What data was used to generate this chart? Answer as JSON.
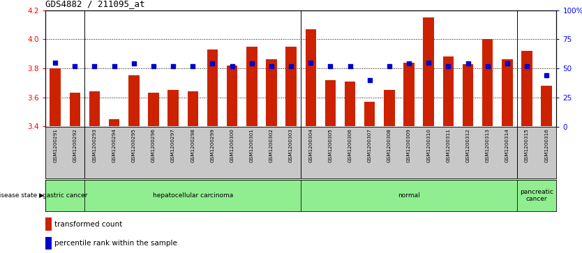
{
  "title": "GDS4882 / 211095_at",
  "samples": [
    "GSM1200291",
    "GSM1200292",
    "GSM1200293",
    "GSM1200294",
    "GSM1200295",
    "GSM1200296",
    "GSM1200297",
    "GSM1200298",
    "GSM1200299",
    "GSM1200300",
    "GSM1200301",
    "GSM1200302",
    "GSM1200303",
    "GSM1200304",
    "GSM1200305",
    "GSM1200306",
    "GSM1200307",
    "GSM1200308",
    "GSM1200309",
    "GSM1200310",
    "GSM1200311",
    "GSM1200312",
    "GSM1200313",
    "GSM1200314",
    "GSM1200315",
    "GSM1200316"
  ],
  "bar_values": [
    3.8,
    3.63,
    3.64,
    3.45,
    3.75,
    3.63,
    3.65,
    3.64,
    3.93,
    3.82,
    3.95,
    3.86,
    3.95,
    4.07,
    3.72,
    3.71,
    3.57,
    3.65,
    3.84,
    4.15,
    3.88,
    3.83,
    4.0,
    3.86,
    3.92,
    3.68
  ],
  "percentile_values": [
    55,
    52,
    52,
    52,
    54,
    52,
    52,
    52,
    54,
    52,
    54,
    52,
    52,
    55,
    52,
    52,
    40,
    52,
    54,
    55,
    52,
    54,
    52,
    54,
    52,
    44
  ],
  "group_boundaries": [
    0,
    2,
    13,
    24,
    26
  ],
  "group_labels": [
    "gastric cancer",
    "hepatocellular carcinoma",
    "normal",
    "pancreatic\ncancer"
  ],
  "ylim_left": [
    3.4,
    4.2
  ],
  "ylim_right": [
    0,
    100
  ],
  "bar_color": "#CC2200",
  "dot_color": "#0000CC",
  "green_color": "#90EE90",
  "yticks_left": [
    3.4,
    3.6,
    3.8,
    4.0,
    4.2
  ],
  "yticks_right": [
    0,
    25,
    50,
    75,
    100
  ],
  "grid_values": [
    3.6,
    3.8,
    4.0
  ],
  "gray_bg": "#C8C8C8",
  "n_samples": 26,
  "bar_width": 0.55
}
